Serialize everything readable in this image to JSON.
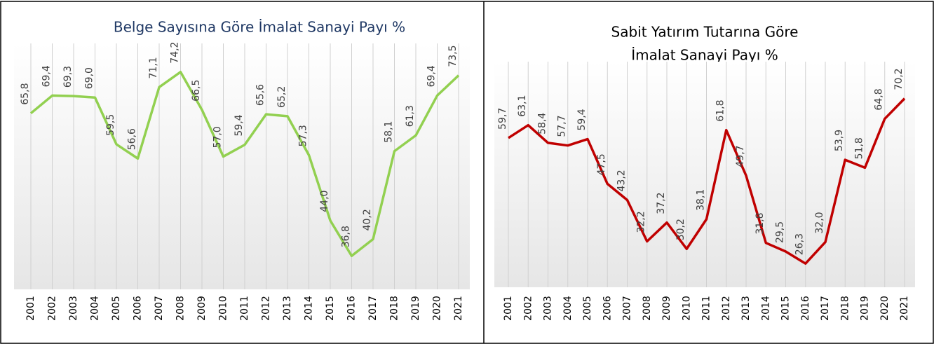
{
  "chart_data": [
    {
      "type": "line",
      "title": [
        "Belge Sayısına Göre İmalat Sanayi Payı %"
      ],
      "title_color": "#1f3864",
      "categories": [
        "2001",
        "2002",
        "2003",
        "2004",
        "2005",
        "2006",
        "2007",
        "2008",
        "2009",
        "2010",
        "2011",
        "2012",
        "2013",
        "2014",
        "2015",
        "2016",
        "2017",
        "2018",
        "2019",
        "2020",
        "2021"
      ],
      "series": [
        {
          "color": "#92d050",
          "values": [
            65.8,
            69.4,
            69.3,
            69.0,
            59.5,
            56.6,
            71.1,
            74.2,
            66.5,
            57.0,
            59.4,
            65.6,
            65.2,
            57.3,
            44.0,
            36.8,
            40.2,
            58.1,
            61.3,
            69.4,
            73.5
          ],
          "value_labels": [
            "65,8",
            "69,4",
            "69,3",
            "69,0",
            "59,5",
            "56,6",
            "71,1",
            "74,2",
            "66,5",
            "57,0",
            "59,4",
            "65,6",
            "65,2",
            "57,3",
            "44,0",
            "36,8",
            "40,2",
            "58,1",
            "61,3",
            "69,4",
            "73,5"
          ]
        }
      ],
      "ylim": [
        30,
        80
      ],
      "grid": true
    },
    {
      "type": "line",
      "title": [
        "Sabit Yatırım Tutarına Göre",
        "İmalat Sanayi Payı %"
      ],
      "title_color": "#000000",
      "categories": [
        "2001",
        "2002",
        "2003",
        "2004",
        "2005",
        "2006",
        "2007",
        "2008",
        "2009",
        "2010",
        "2011",
        "2012",
        "2013",
        "2014",
        "2015",
        "2016",
        "2017",
        "2018",
        "2019",
        "2020",
        "2021"
      ],
      "series": [
        {
          "color": "#c00000",
          "values": [
            59.7,
            63.1,
            58.4,
            57.7,
            59.4,
            47.5,
            43.2,
            32.2,
            37.2,
            30.2,
            38.1,
            61.8,
            49.7,
            31.8,
            29.5,
            26.3,
            32.0,
            53.9,
            51.8,
            64.8,
            70.2
          ],
          "value_labels": [
            "59,7",
            "63,1",
            "58,4",
            "57,7",
            "59,4",
            "47,5",
            "43,2",
            "32,2",
            "37,2",
            "30,2",
            "38,1",
            "61,8",
            "49,7",
            "31,8",
            "29,5",
            "26,3",
            "32,0",
            "53,9",
            "51,8",
            "64,8",
            "70,2"
          ]
        }
      ],
      "ylim": [
        20,
        80
      ],
      "grid": true
    }
  ]
}
